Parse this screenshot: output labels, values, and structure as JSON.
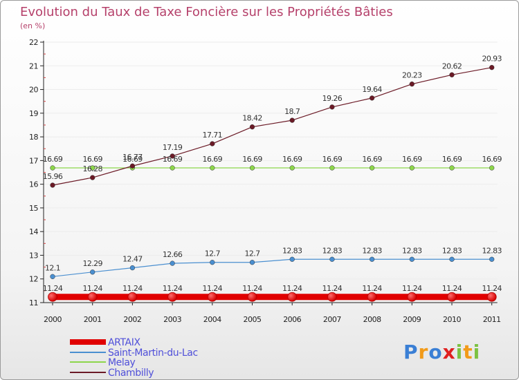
{
  "chart_data": {
    "type": "line",
    "title": "Evolution du Taux de Taxe Foncière sur les Propriétés Bâties",
    "subtitle": "(en %)",
    "categories": [
      "2000",
      "2001",
      "2002",
      "2003",
      "2004",
      "2005",
      "2006",
      "2007",
      "2008",
      "2009",
      "2010",
      "2011"
    ],
    "ylim": [
      11,
      22
    ],
    "yticks": [
      11,
      12,
      13,
      14,
      15,
      16,
      17,
      18,
      19,
      20,
      21,
      22
    ],
    "series": [
      {
        "name": "ARTAIX",
        "color": "#e00000",
        "values": [
          11.24,
          11.24,
          11.24,
          11.24,
          11.24,
          11.24,
          11.24,
          11.24,
          11.24,
          11.24,
          11.24,
          11.24
        ],
        "labels": [
          "11.24",
          "11.24",
          "11.24",
          "11.24",
          "11.24",
          "11.24",
          "11.24",
          "11.24",
          "11.24",
          "11.24",
          "11.24",
          "11.24"
        ]
      },
      {
        "name": "Saint-Martin-du-Lac",
        "color": "#4a8fd0",
        "values": [
          12.1,
          12.29,
          12.47,
          12.66,
          12.7,
          12.7,
          12.83,
          12.83,
          12.83,
          12.83,
          12.83,
          12.83
        ],
        "labels": [
          "12.1",
          "12.29",
          "12.47",
          "12.66",
          "12.7",
          "12.7",
          "12.83",
          "12.83",
          "12.83",
          "12.83",
          "12.83",
          "12.83"
        ]
      },
      {
        "name": "Melay",
        "color": "#8cd64a",
        "values": [
          16.69,
          16.69,
          16.69,
          16.69,
          16.69,
          16.69,
          16.69,
          16.69,
          16.69,
          16.69,
          16.69,
          16.69
        ],
        "labels": [
          "16.69",
          "16.69",
          "16.69",
          "16.69",
          "16.69",
          "16.69",
          "16.69",
          "16.69",
          "16.69",
          "16.69",
          "16.69",
          "16.69"
        ]
      },
      {
        "name": "Chambilly",
        "color": "#6b1a26",
        "values": [
          15.96,
          16.28,
          16.77,
          17.19,
          17.71,
          18.42,
          18.7,
          19.26,
          19.64,
          20.23,
          20.62,
          20.93
        ],
        "labels": [
          "15.96",
          "16.28",
          "16.77",
          "17.19",
          "17.71",
          "18.42",
          "18.7",
          "19.26",
          "19.64",
          "20.23",
          "20.62",
          "20.93"
        ]
      }
    ]
  },
  "logo": {
    "text": "Proxiti"
  }
}
